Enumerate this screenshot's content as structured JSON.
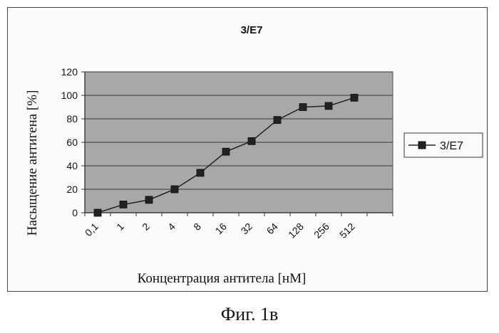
{
  "caption": "Фиг. 1в",
  "chart_data": {
    "type": "line",
    "title": "3/E7",
    "xlabel": "Концентрация антитела [нМ]",
    "ylabel": "Насыщение антигена [%]",
    "categories": [
      "0,1",
      "1",
      "2",
      "4",
      "8",
      "16",
      "32",
      "64",
      "128",
      "256",
      "512"
    ],
    "extra_x_points": 1,
    "ylim": [
      0,
      120
    ],
    "yticks": [
      0,
      20,
      40,
      60,
      80,
      100,
      120
    ],
    "grid": "horizontal",
    "legend": "right",
    "series": [
      {
        "name": "3/E7",
        "color": "#222222",
        "marker": "square",
        "values": [
          0,
          7,
          11,
          20,
          34,
          52,
          61,
          79,
          90,
          91,
          98
        ]
      }
    ],
    "plot_background": "#a8a8a8"
  }
}
